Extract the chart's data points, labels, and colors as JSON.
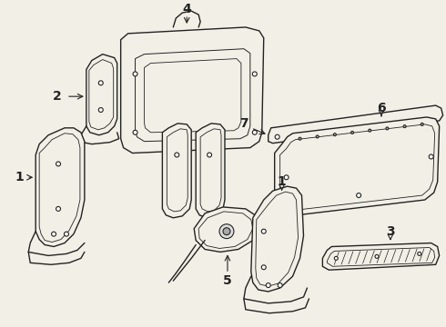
{
  "bg_color": "#f2efe6",
  "line_color": "#222222",
  "line_width": 1.0,
  "fig_w": 4.9,
  "fig_h": 3.6,
  "dpi": 100
}
